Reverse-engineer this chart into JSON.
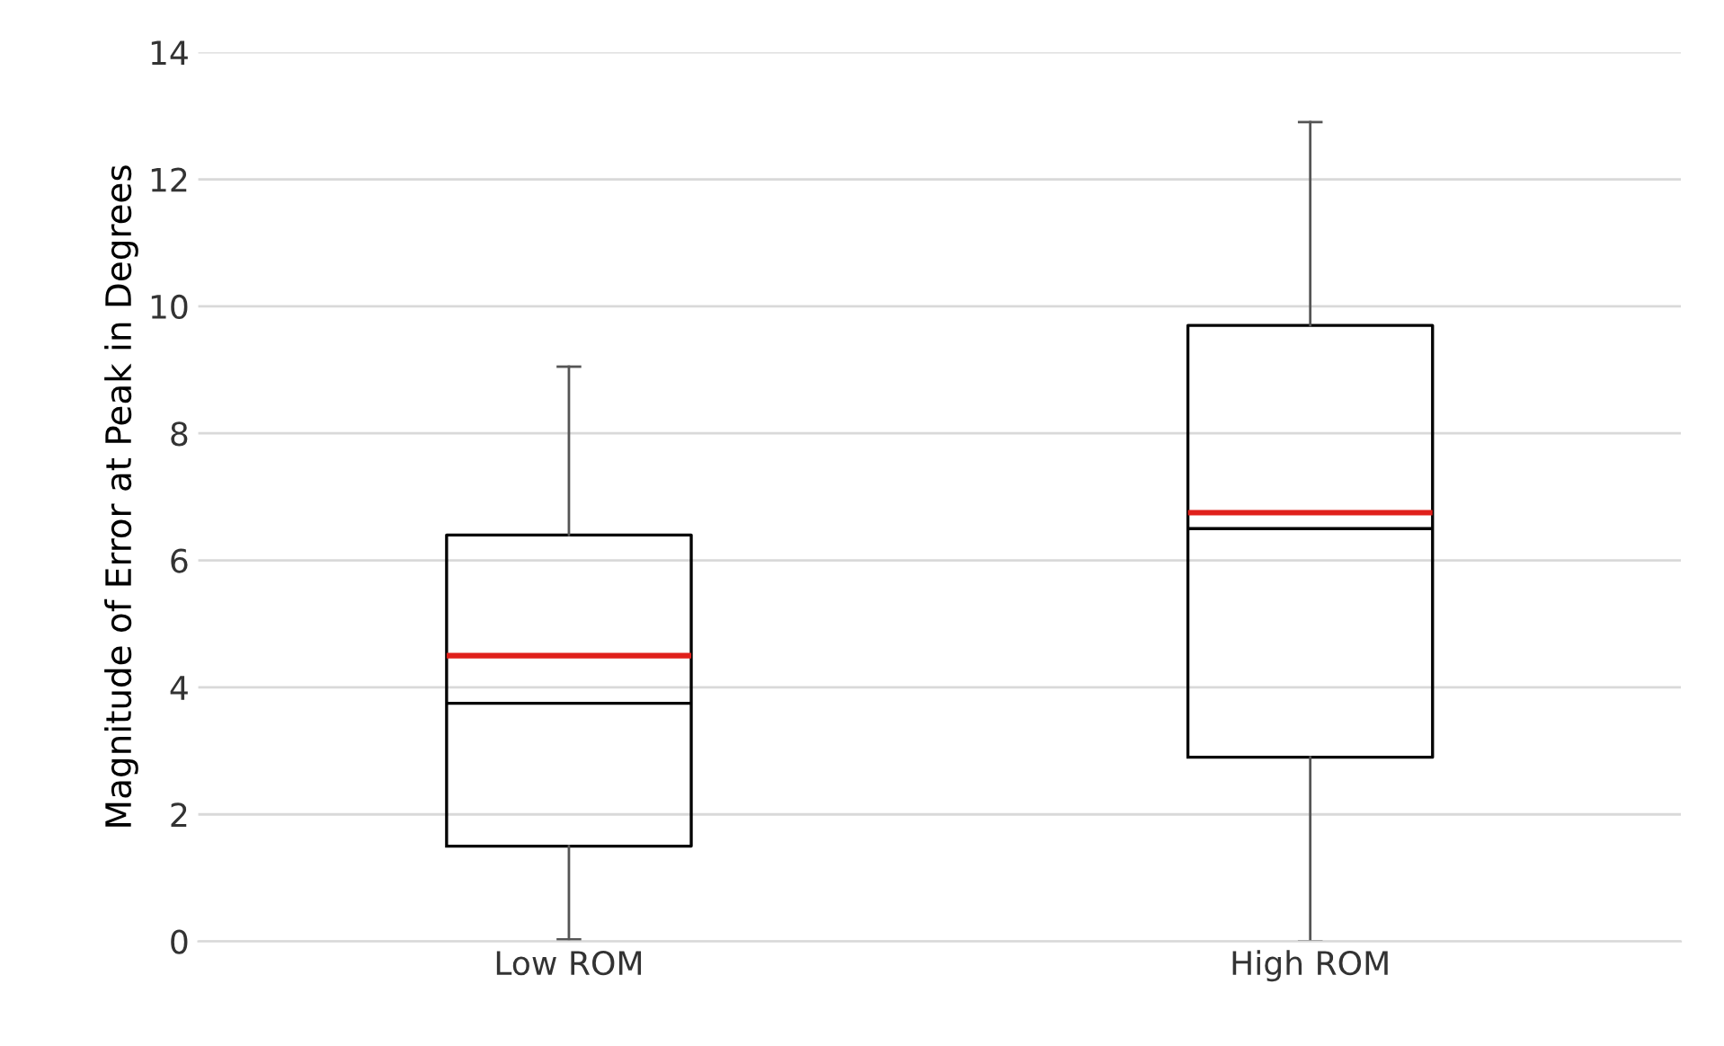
{
  "chart_data": {
    "type": "box",
    "ylabel": "Magnitude of Error at Peak in Degrees",
    "categories": [
      "Low ROM",
      "High ROM"
    ],
    "boxes": [
      {
        "low": 0.03,
        "q1": 1.5,
        "median": 3.75,
        "q3": 6.4,
        "high": 9.05,
        "mean": 4.5
      },
      {
        "low": 0,
        "q1": 2.9,
        "median": 6.5,
        "q3": 9.7,
        "high": 12.9,
        "mean": 6.75
      }
    ],
    "ylim": [
      0,
      14
    ],
    "yticks": [
      0,
      2,
      4,
      6,
      8,
      10,
      12,
      14
    ],
    "grid": "y"
  }
}
